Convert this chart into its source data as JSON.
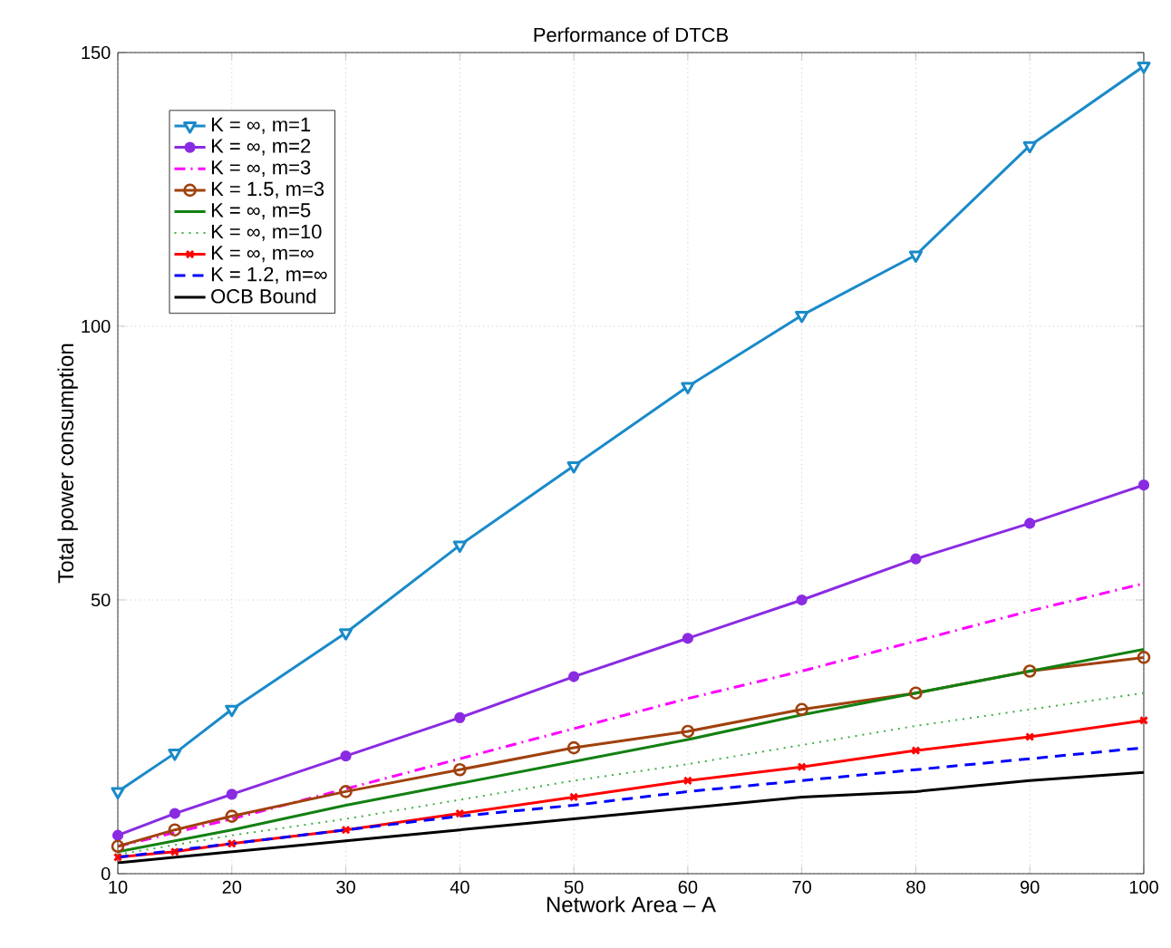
{
  "chart_data": {
    "type": "line",
    "title": "Performance of DTCB",
    "xlabel": "Network Area – A",
    "ylabel": "Total power consumption",
    "xlim": [
      10,
      100
    ],
    "ylim": [
      0,
      150
    ],
    "xticks": [
      10,
      20,
      30,
      40,
      50,
      60,
      70,
      80,
      90,
      100
    ],
    "yticks": [
      0,
      50,
      100,
      150
    ],
    "grid": true,
    "legend": "top left",
    "series": [
      {
        "name": "K = ∞, m=1",
        "color": "#1a8ac9",
        "marker": "triangle",
        "line_style": "solid",
        "x": [
          10,
          15,
          20,
          30,
          40,
          50,
          60,
          70,
          80,
          90,
          100
        ],
        "values": [
          15,
          22,
          30,
          44,
          60,
          74.5,
          89,
          102,
          113,
          133,
          147.5
        ]
      },
      {
        "name": "K = ∞, m=2",
        "color": "#8a2be2",
        "marker": "circle",
        "line_style": "solid",
        "x": [
          10,
          15,
          20,
          30,
          40,
          50,
          60,
          70,
          80,
          90,
          100
        ],
        "values": [
          7,
          11,
          14.5,
          21.5,
          28.5,
          36,
          43,
          50,
          57.5,
          64,
          71
        ]
      },
      {
        "name": "K = ∞, m=3",
        "color": "#ff00ff",
        "marker": "none",
        "line_style": "dashdot",
        "x": [
          10,
          20,
          30,
          40,
          50,
          60,
          70,
          80,
          90,
          100
        ],
        "values": [
          5,
          10,
          15.5,
          21,
          26.5,
          32,
          37,
          42.5,
          48,
          53
        ]
      },
      {
        "name": "K = 1.5, m=3",
        "color": "#a0410d",
        "marker": "circle",
        "line_style": "solid",
        "x": [
          10,
          15,
          20,
          30,
          40,
          50,
          60,
          70,
          80,
          90,
          100
        ],
        "values": [
          5,
          8,
          10.5,
          15,
          19,
          23,
          26,
          30,
          33,
          37,
          39.5
        ]
      },
      {
        "name": "K = ∞, m=5",
        "color": "#128012",
        "marker": "none",
        "line_style": "solid",
        "x": [
          10,
          20,
          30,
          40,
          50,
          60,
          70,
          80,
          90,
          100
        ],
        "values": [
          4,
          8,
          12.5,
          16.5,
          20.5,
          24.5,
          29,
          33,
          37,
          41
        ]
      },
      {
        "name": "K = ∞, m=10",
        "color": "#3cb043",
        "marker": "none",
        "line_style": "dotted",
        "x": [
          10,
          20,
          30,
          40,
          50,
          60,
          70,
          80,
          90,
          100
        ],
        "values": [
          3.5,
          7,
          10,
          13.5,
          17,
          20,
          23.5,
          27,
          30,
          33
        ]
      },
      {
        "name": "K = ∞, m=∞",
        "color": "#ff0000",
        "marker": "cross",
        "line_style": "solid",
        "x": [
          10,
          15,
          20,
          30,
          40,
          50,
          60,
          70,
          80,
          90,
          100
        ],
        "values": [
          3,
          4,
          5.5,
          8,
          11,
          14,
          17,
          19.5,
          22.5,
          25,
          28
        ]
      },
      {
        "name": "K = 1.2, m=∞",
        "color": "#0000ff",
        "marker": "none",
        "line_style": "dashed",
        "x": [
          10,
          20,
          30,
          40,
          50,
          60,
          70,
          80,
          90,
          100
        ],
        "values": [
          3,
          5.5,
          8,
          10.5,
          12.5,
          15,
          17,
          19,
          21,
          23
        ]
      },
      {
        "name": "OCB Bound",
        "color": "#000000",
        "marker": "none",
        "line_style": "solid",
        "x": [
          10,
          20,
          30,
          40,
          50,
          60,
          70,
          80,
          90,
          100
        ],
        "values": [
          2,
          4,
          6,
          8,
          10,
          12,
          14,
          15,
          17,
          18.5
        ]
      }
    ]
  }
}
